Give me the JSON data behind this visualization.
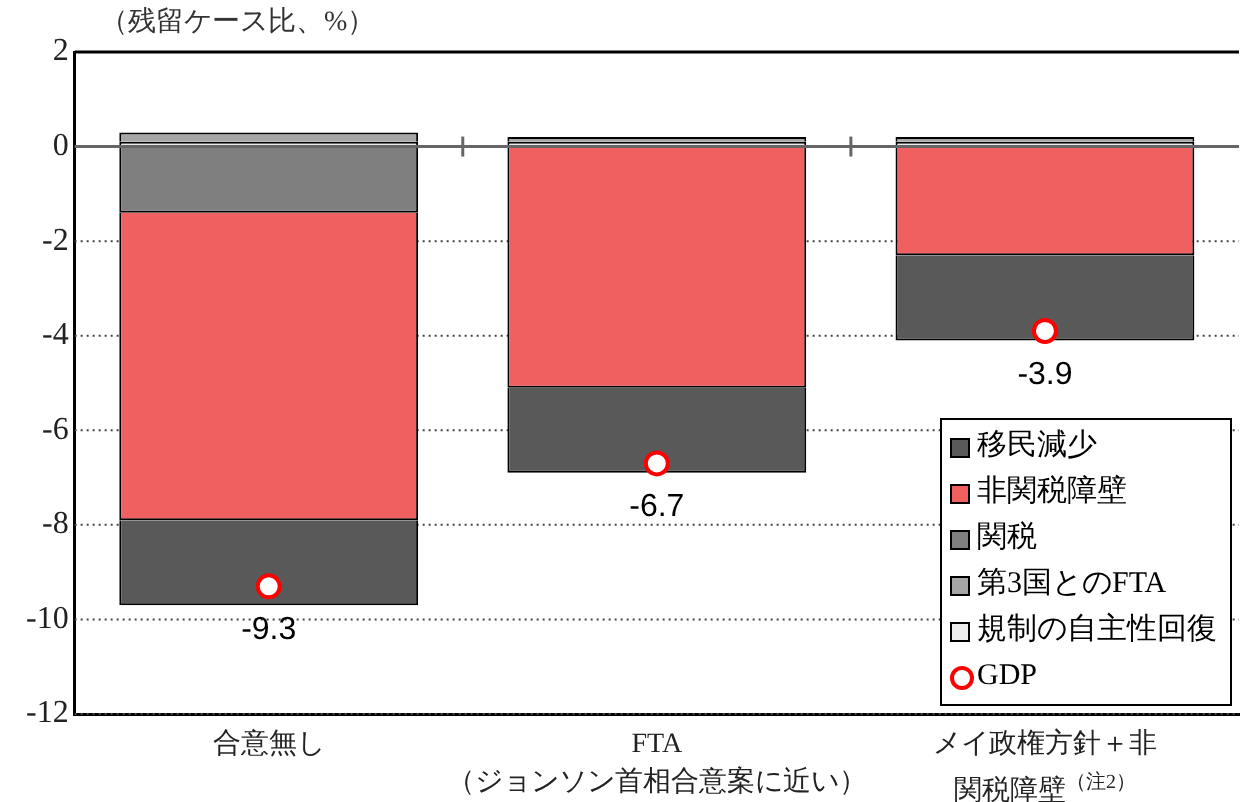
{
  "chart_data": {
    "type": "bar",
    "stacked": true,
    "ylabel": "（残留ケース比、%）",
    "categories": [
      "合意無し",
      "FTA\n（ジョンソン首相合意案に近い）",
      "メイ政権方針＋非関税障壁$^{（注2）}$"
    ],
    "series": [
      {
        "name": "規制の自主性回復",
        "color": "#ececec",
        "values": [
          0.1,
          0.1,
          0.1
        ]
      },
      {
        "name": "第3国とのFTA",
        "color": "#a6a6a6",
        "values": [
          0.2,
          0.1,
          0.1
        ]
      },
      {
        "name": "関税",
        "color": "#7f7f7f",
        "values": [
          -1.4,
          0,
          0
        ]
      },
      {
        "name": "非関税障壁",
        "color": "#f06060",
        "values": [
          -6.5,
          -5.1,
          -2.3
        ]
      },
      {
        "name": "移民減少",
        "color": "#595959",
        "values": [
          -1.8,
          -1.8,
          -1.8
        ]
      },
      {
        "name": "GDP",
        "type": "scatter",
        "color": "#ff0000",
        "x": [
          "合意無し",
          "FTA\n（ジョンソン首相合意案に近い）",
          "メイ政権方針＋非関税障壁$^{（注2）}$"
        ],
        "values": [
          -9.3,
          -6.7,
          -3.9
        ],
        "value_labels": [
          "-9.3",
          "-6.7",
          "-3.9"
        ]
      }
    ],
    "ylim": [
      -12,
      2
    ],
    "yticks": [
      -12,
      -10,
      -8,
      -6,
      -4,
      -2,
      0,
      2
    ],
    "grid": "y",
    "legend": "bottom right",
    "marker": "circle"
  }
}
